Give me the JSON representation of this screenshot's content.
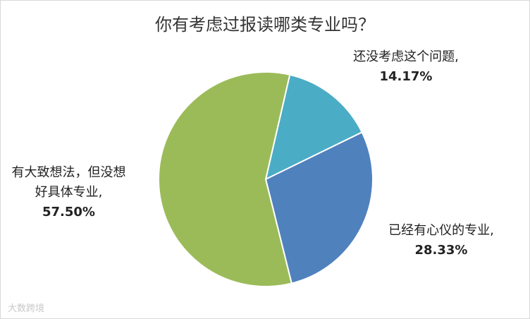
{
  "chart_data": {
    "type": "pie",
    "title": "你有考虑过报读哪类专业吗？",
    "categories": [
      "还没考虑这个问题,",
      "已经有心仪的专业,",
      "有大致想法，但没想好具体专业,"
    ],
    "values": [
      14.17,
      28.33,
      57.5
    ],
    "value_labels": [
      "14.17%",
      "28.33%",
      "57.50%"
    ],
    "colors": [
      "#4bacc6",
      "#4f81bd",
      "#9bbb59"
    ]
  },
  "watermark": "大数跨境"
}
